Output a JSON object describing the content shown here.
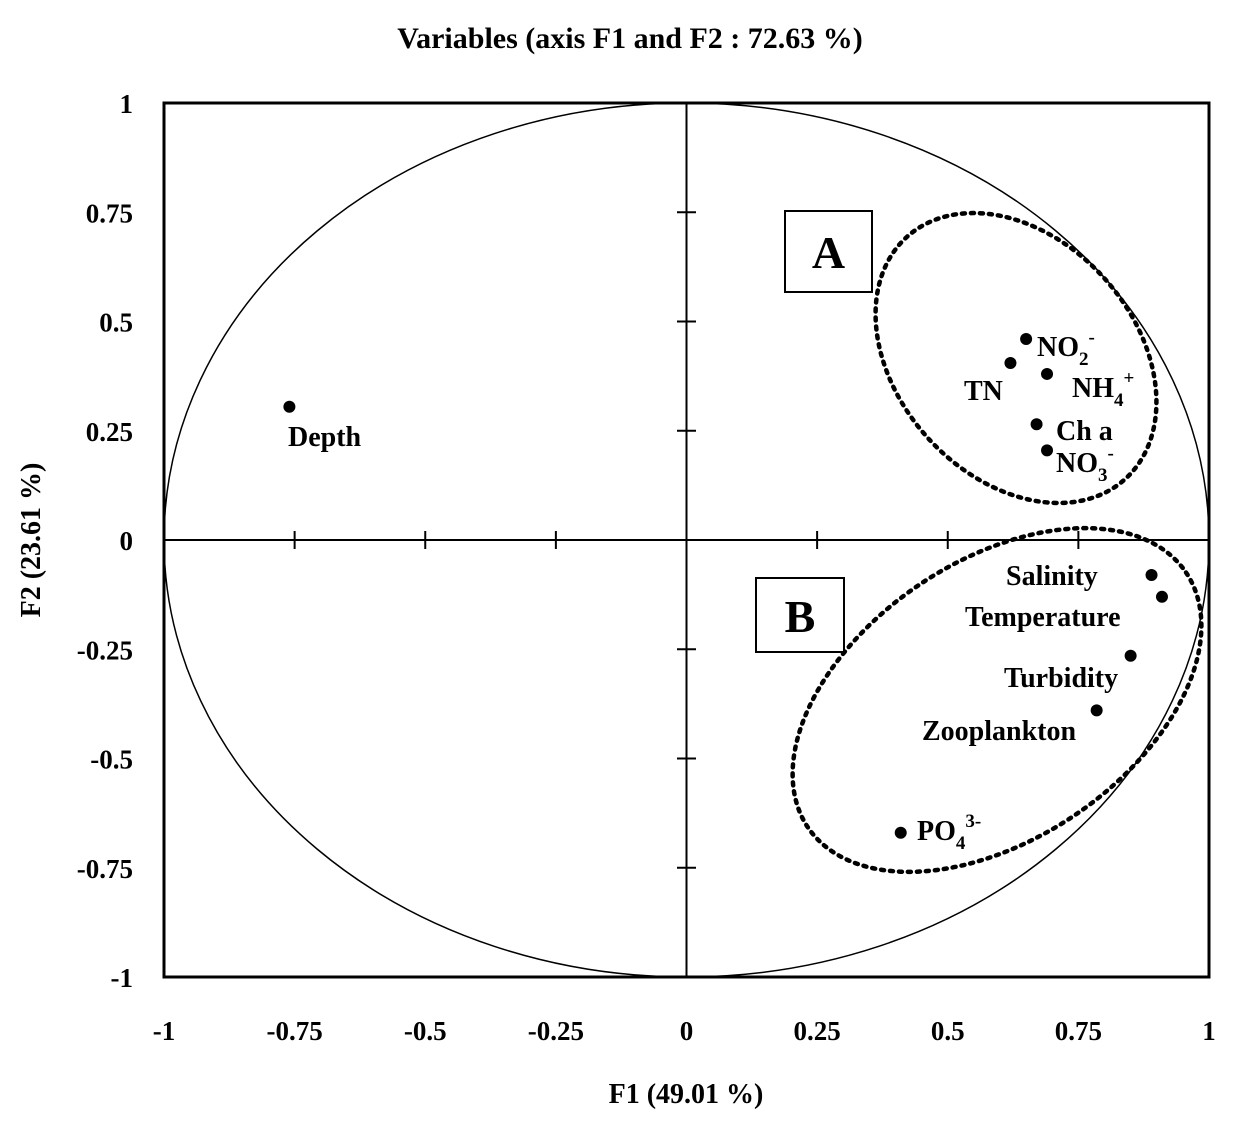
{
  "chart_data": {
    "type": "scatter",
    "title": "Variables (axis F1 and F2 : 72.63 %)",
    "xlabel": "F1 (49.01 %)",
    "ylabel": "F2 (23.61 %)",
    "xlim": [
      -1,
      1
    ],
    "ylim": [
      -1,
      1
    ],
    "xticks": [
      "-1",
      "-0.75",
      "-0.5",
      "-0.25",
      "0",
      "0.25",
      "0.5",
      "0.75",
      "1"
    ],
    "yticks": [
      "1",
      "0.75",
      "0.5",
      "0.25",
      "0",
      "-0.25",
      "-0.5",
      "-0.75",
      "-1"
    ],
    "grid": false,
    "correlation_circle": true,
    "points": [
      {
        "label": "Depth",
        "x": -0.76,
        "y": 0.305
      },
      {
        "label": "NO2-",
        "x": 0.65,
        "y": 0.46
      },
      {
        "label": "TN",
        "x": 0.62,
        "y": 0.405
      },
      {
        "label": "NH4+",
        "x": 0.69,
        "y": 0.38
      },
      {
        "label": "Ch a",
        "x": 0.67,
        "y": 0.265
      },
      {
        "label": "NO3-",
        "x": 0.69,
        "y": 0.205
      },
      {
        "label": "Salinity",
        "x": 0.89,
        "y": -0.08
      },
      {
        "label": "Temperature",
        "x": 0.91,
        "y": -0.13
      },
      {
        "label": "Turbidity",
        "x": 0.85,
        "y": -0.265
      },
      {
        "label": "Zooplankton",
        "x": 0.785,
        "y": -0.39
      },
      {
        "label": "PO43-",
        "x": 0.41,
        "y": -0.67
      }
    ],
    "groups": [
      {
        "label": "A",
        "members": [
          "NO2-",
          "TN",
          "NH4+",
          "Ch a",
          "NO3-"
        ]
      },
      {
        "label": "B",
        "members": [
          "Salinity",
          "Temperature",
          "Turbidity",
          "Zooplankton",
          "PO43-"
        ]
      }
    ]
  }
}
